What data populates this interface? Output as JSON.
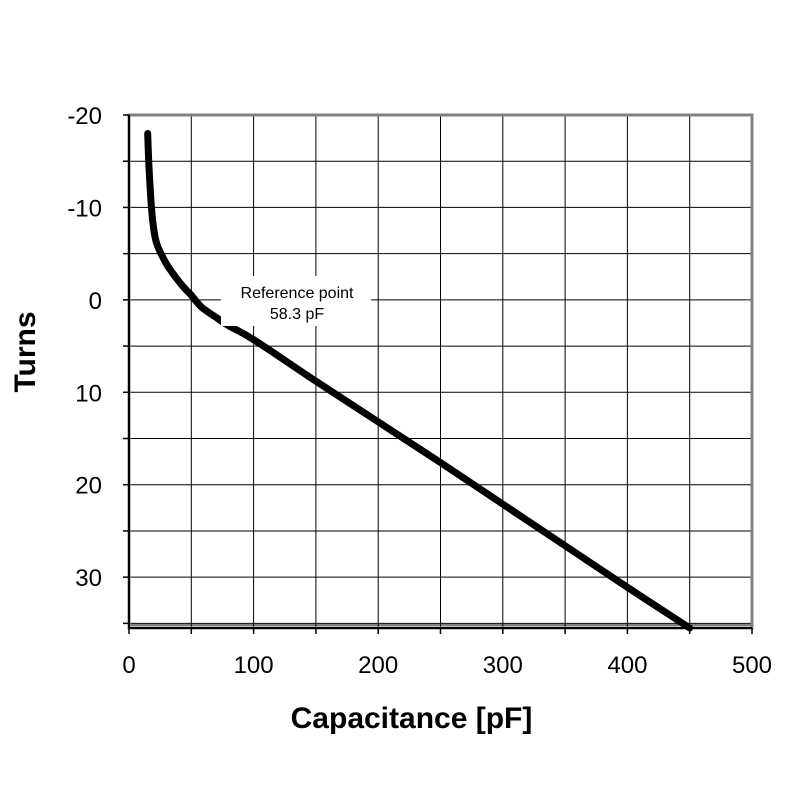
{
  "chart_data": {
    "type": "line",
    "title": "",
    "xlabel": "Capacitance [pF]",
    "ylabel": "Turns",
    "xlim": [
      0,
      500
    ],
    "ylim": [
      -20,
      35.5
    ],
    "y_inverted": true,
    "grid": true,
    "x_ticks": [
      0,
      50,
      100,
      150,
      200,
      250,
      300,
      350,
      400,
      450,
      500
    ],
    "x_tick_labels": [
      "0",
      "100",
      "200",
      "300",
      "400",
      "500"
    ],
    "x_tick_label_values": [
      0,
      100,
      200,
      300,
      400,
      500
    ],
    "y_ticks": [
      -20,
      -15,
      -10,
      -5,
      0,
      5,
      10,
      15,
      20,
      25,
      30,
      35
    ],
    "y_tick_labels": [
      "-20",
      "-10",
      "0",
      "10",
      "20",
      "30"
    ],
    "y_tick_label_values": [
      -20,
      -10,
      0,
      10,
      20,
      30
    ],
    "series": [
      {
        "x": [
          15,
          16,
          18,
          20,
          22,
          25,
          30,
          35,
          40,
          45,
          50,
          58.3,
          70,
          80,
          100,
          150,
          200,
          250,
          300,
          350,
          400,
          450
        ],
        "y": [
          -18,
          -14.5,
          -10,
          -7.5,
          -6.2,
          -5.2,
          -3.9,
          -2.9,
          -2.0,
          -1.2,
          -0.5,
          0.8,
          1.9,
          2.8,
          4.3,
          8.8,
          13.2,
          17.6,
          22.1,
          26.6,
          31.1,
          35.5
        ]
      }
    ],
    "annotations": [
      {
        "line1": "Reference point",
        "line2": "58.3 pF",
        "x": 58.3,
        "y": 0
      }
    ],
    "colors": {
      "line": "#000000",
      "grid": "#000000",
      "frame": "#808080",
      "plot_bg": "#ffffff"
    }
  }
}
